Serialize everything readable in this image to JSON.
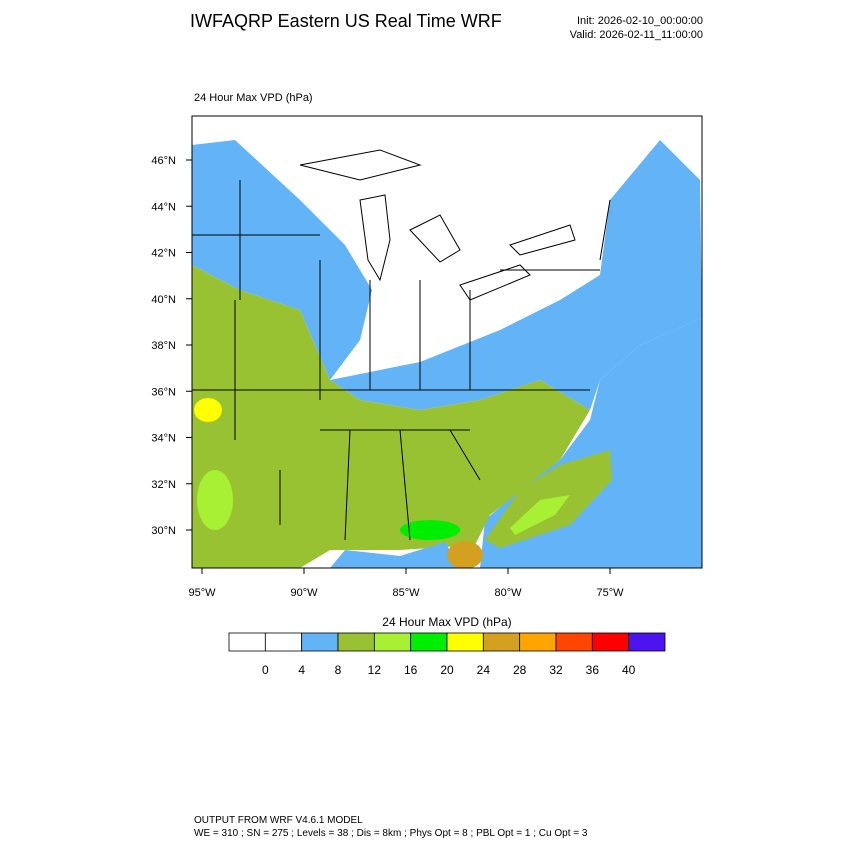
{
  "header": {
    "title": "IWFAQRP Eastern US Real Time WRF",
    "init": "Init: 2026-02-10_00:00:00",
    "valid": "Valid: 2026-02-11_11:00:00"
  },
  "map": {
    "field_label": "24 Hour Max VPD   (hPa)",
    "lat_labels": [
      "46°N",
      "44°N",
      "42°N",
      "40°N",
      "38°N",
      "36°N",
      "34°N",
      "32°N",
      "30°N"
    ],
    "lon_labels": [
      "95°W",
      "90°W",
      "85°W",
      "80°W",
      "75°W"
    ]
  },
  "colorbar": {
    "title": "24 Hour Max VPD  (hPa)",
    "levels": [
      0,
      4,
      8,
      12,
      16,
      20,
      24,
      28,
      32,
      36,
      40
    ],
    "colors": [
      "#ffffff",
      "#ffffff",
      "#63b3f7",
      "#99c233",
      "#a8f033",
      "#00ee00",
      "#ffff00",
      "#d4a020",
      "#ffa500",
      "#ff4500",
      "#ff0000",
      "#4b14f0"
    ]
  },
  "footer": {
    "line1": "OUTPUT FROM WRF V4.6.1 MODEL",
    "line2": "WE = 310 ; SN = 275 ; Levels = 38 ; Dis = 8km ; Phys Opt = 8 ; PBL Opt = 1 ; Cu Opt = 3"
  }
}
